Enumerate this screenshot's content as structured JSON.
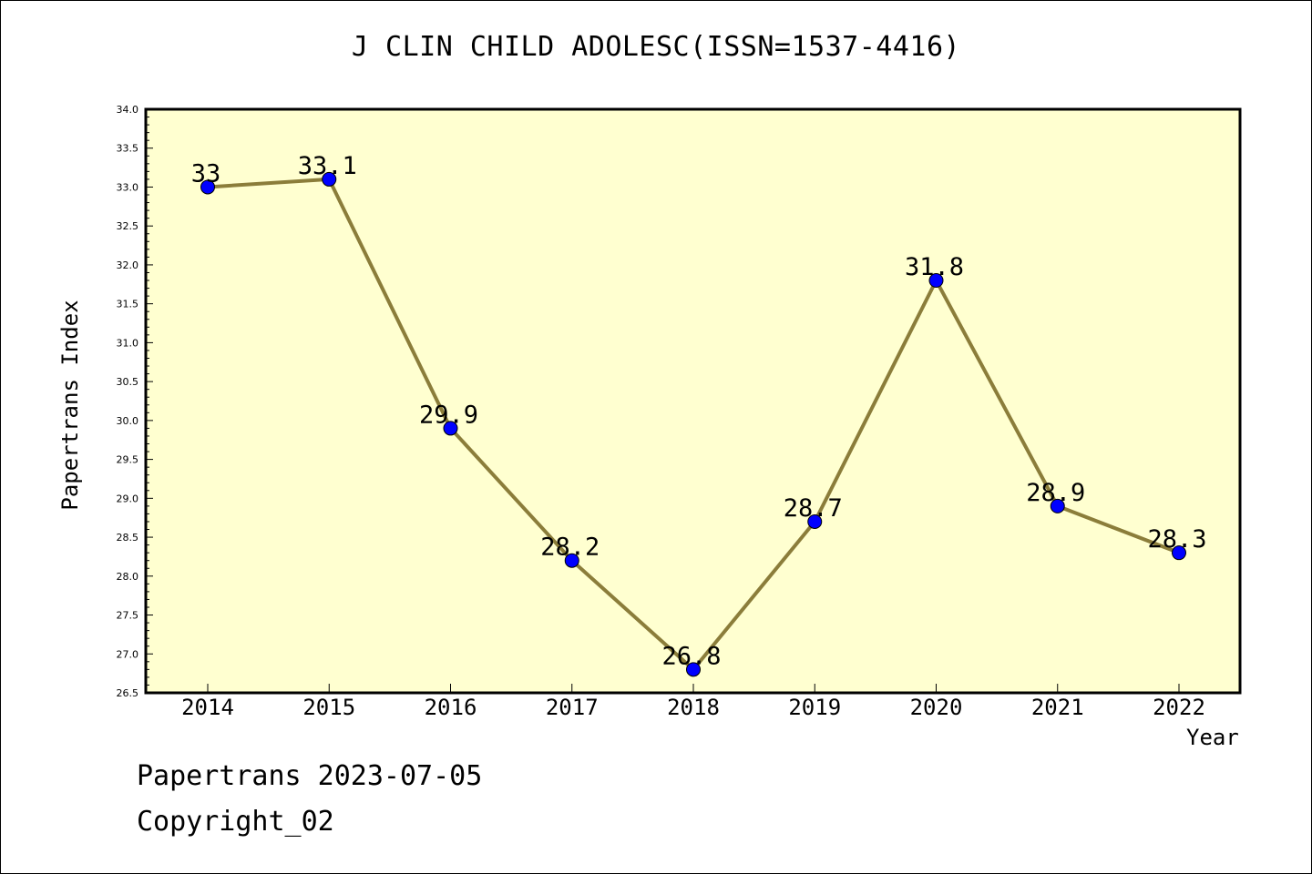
{
  "chart_data": {
    "type": "line",
    "title": "J CLIN CHILD ADOLESC(ISSN=1537-4416)",
    "xlabel": "Year",
    "ylabel": "Papertrans Index",
    "categories": [
      "2014",
      "2015",
      "2016",
      "2017",
      "2018",
      "2019",
      "2020",
      "2021",
      "2022"
    ],
    "values": [
      33,
      33.1,
      29.9,
      28.2,
      26.8,
      28.7,
      31.8,
      28.9,
      28.3
    ],
    "data_labels": [
      "33",
      "33.1",
      "29.9",
      "28.2",
      "26.8",
      "28.7",
      "31.8",
      "28.9",
      "28.3"
    ],
    "ylim": [
      26.5,
      34.0
    ],
    "yticks": [
      "26.5",
      "27.0",
      "27.5",
      "28.0",
      "28.5",
      "29.0",
      "29.5",
      "30.0",
      "30.5",
      "31.0",
      "31.5",
      "32.0",
      "32.5",
      "33.0",
      "33.5",
      "34.0"
    ],
    "grid": false,
    "legend": "none",
    "colors": {
      "plot_background": "#ffffd0",
      "line": "#8b7d3a",
      "marker": "#0000ff"
    }
  },
  "footer": {
    "date_line": "Papertrans 2023-07-05",
    "copyright_line": "Copyright_02"
  }
}
